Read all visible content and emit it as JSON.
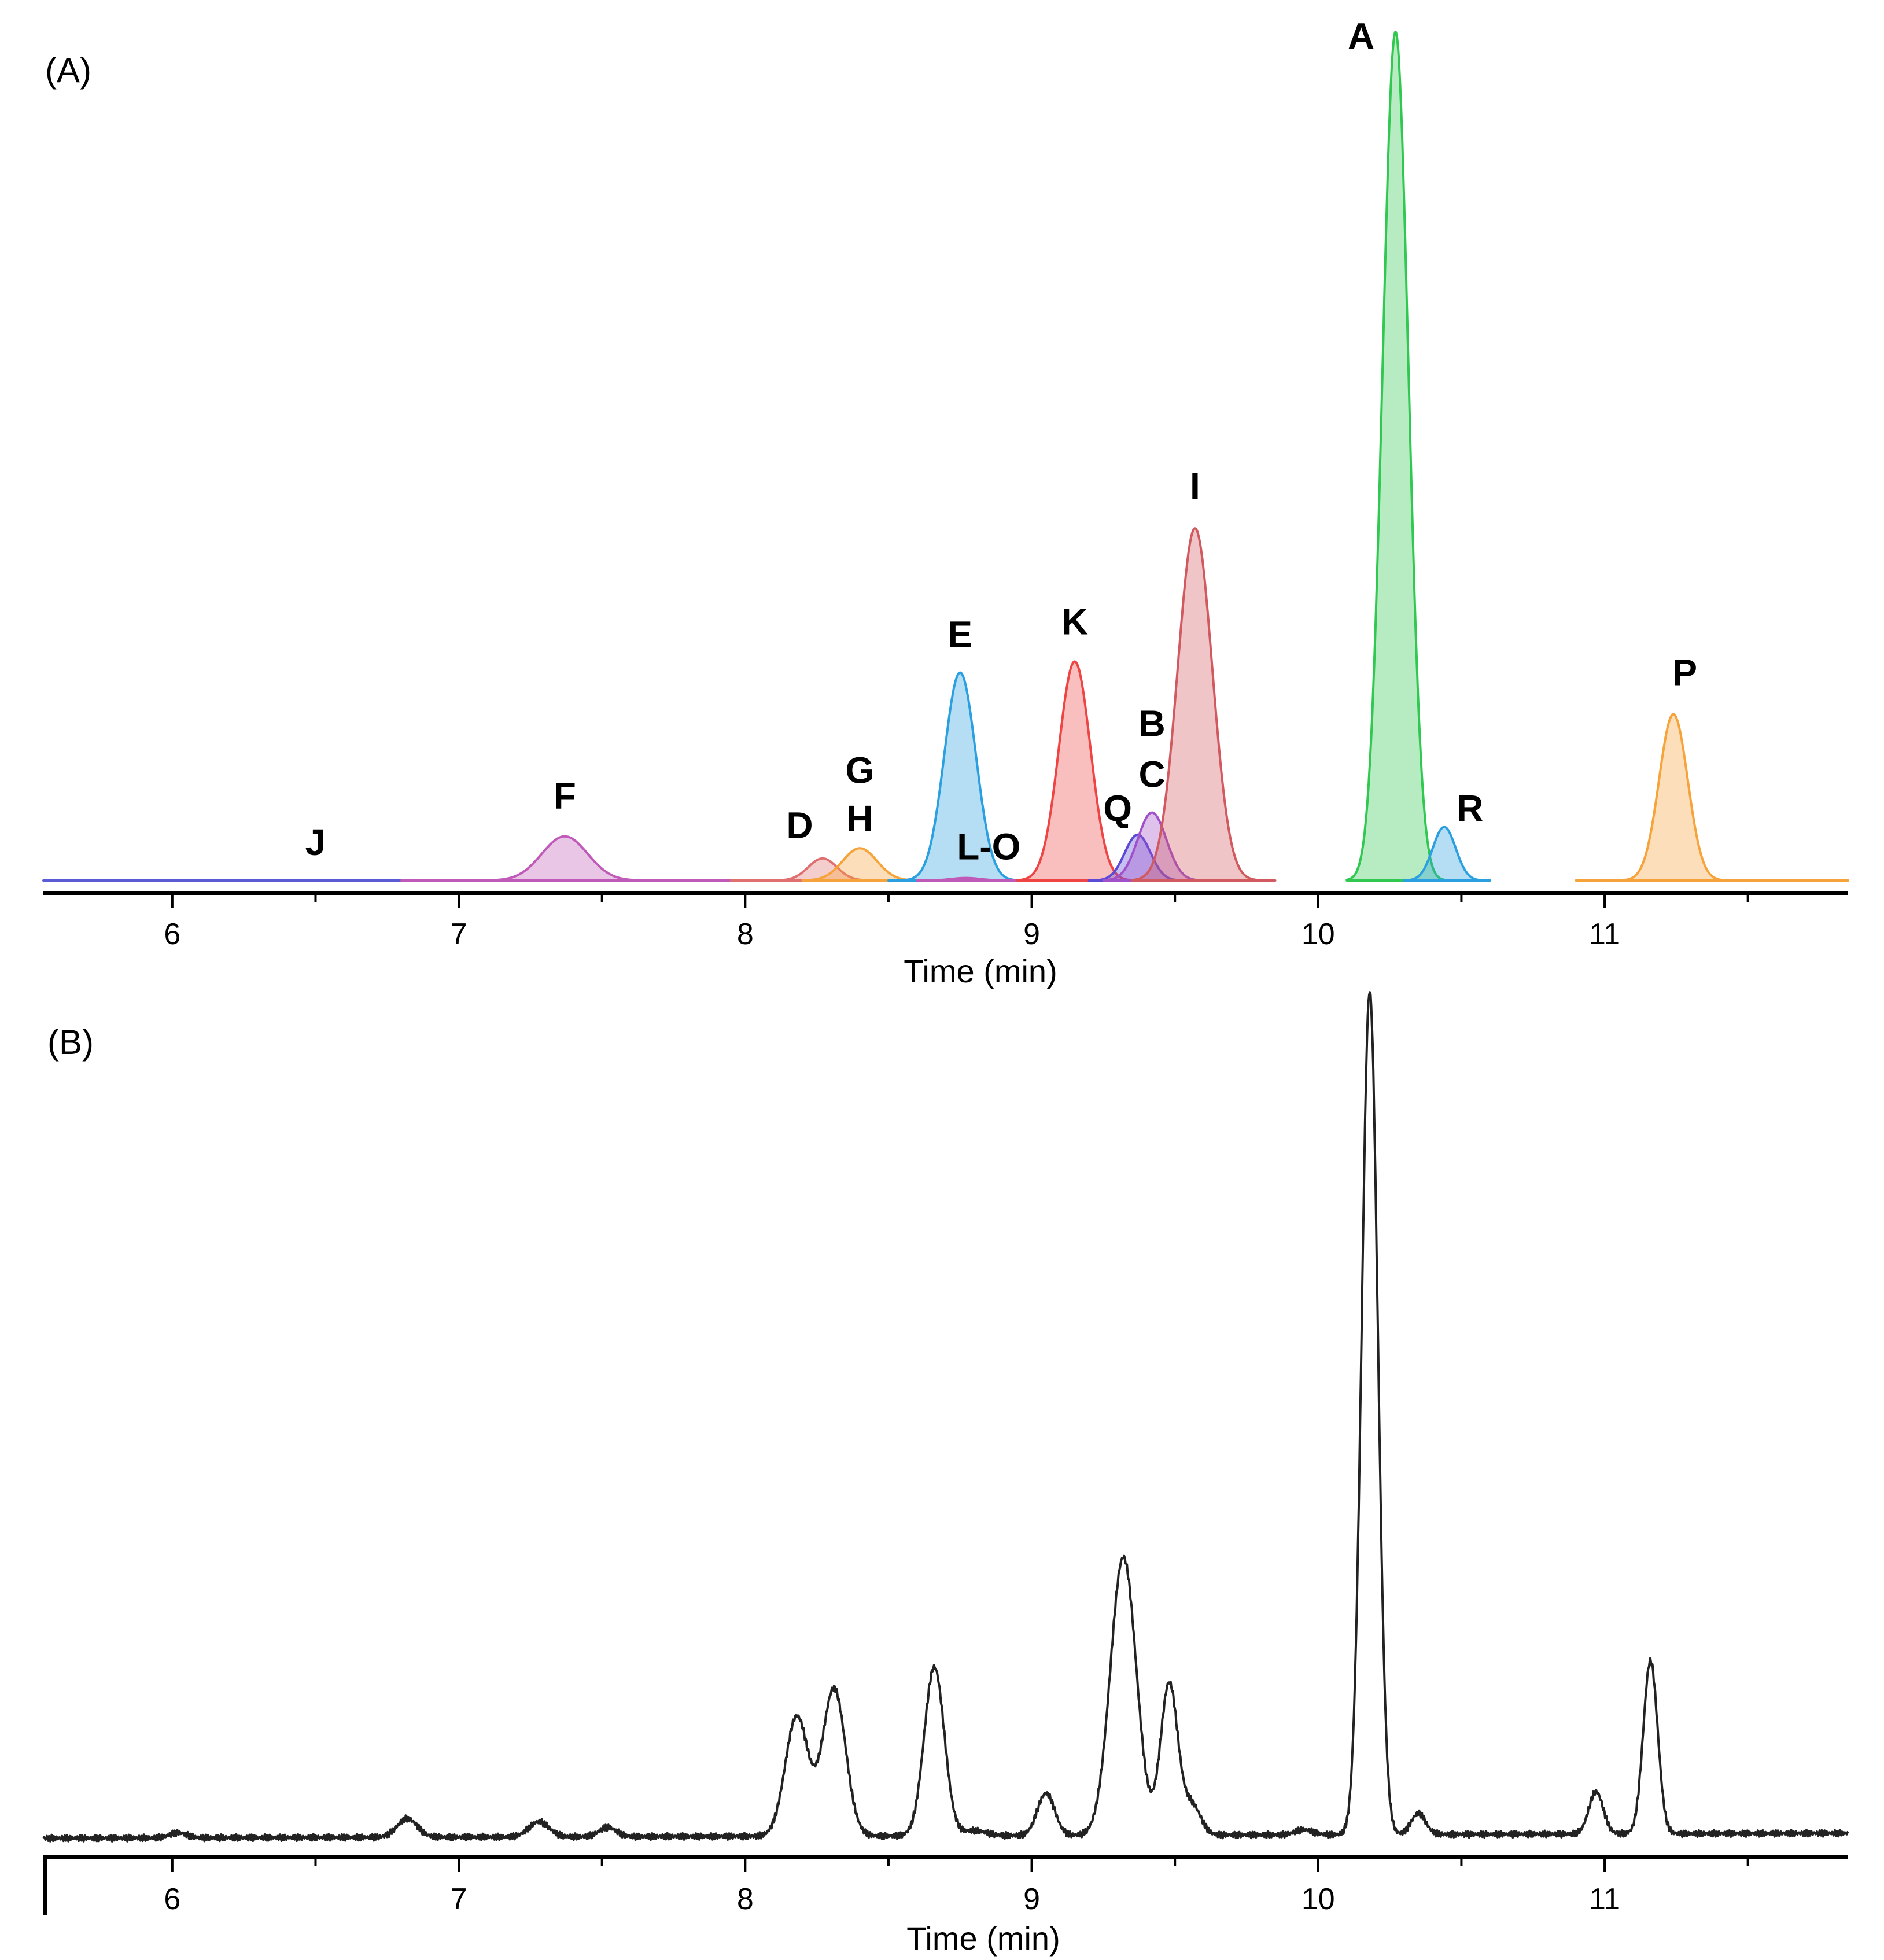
{
  "chart_data": [
    {
      "panel": "(A)",
      "type": "area",
      "xlabel": "Time (min)",
      "ylabel": "",
      "xlim": [
        5.55,
        11.85
      ],
      "ylim": [
        0,
        100
      ],
      "x_ticks": [
        6,
        7,
        8,
        9,
        10,
        11
      ],
      "x_tick_labels": [
        "6",
        "7",
        "8",
        "9",
        "10",
        "11"
      ],
      "x_minor_ticks": [
        5.5,
        6.5,
        7.5,
        8.5,
        9.5,
        10.5,
        11.5
      ],
      "grid": false,
      "series": [
        {
          "name": "J",
          "center": 6.5,
          "height": 0.0,
          "width": 0.6,
          "color": "#5b5bd6",
          "segment": [
            5.55,
            6.8
          ]
        },
        {
          "name": "F",
          "center": 7.37,
          "height": 5.2,
          "width": 0.08,
          "color": "#c05ab8",
          "segment": [
            6.8,
            7.95
          ]
        },
        {
          "name": "D",
          "center": 8.27,
          "height": 2.6,
          "width": 0.05,
          "color": "#e07070",
          "segment": [
            7.95,
            8.45
          ]
        },
        {
          "name": "G H",
          "center": 8.4,
          "height": 3.8,
          "width": 0.06,
          "color": "#f5a33a",
          "segment": [
            8.2,
            8.6
          ]
        },
        {
          "name": "E",
          "center": 8.75,
          "height": 24.5,
          "width": 0.055,
          "color": "#2aa0e0",
          "segment": [
            8.5,
            9.0
          ]
        },
        {
          "name": "L-O",
          "center": 8.77,
          "height": 0.3,
          "width": 0.05,
          "color": "#c05ab8",
          "segment": [
            8.6,
            8.95
          ]
        },
        {
          "name": "K",
          "center": 9.15,
          "height": 25.8,
          "width": 0.055,
          "color": "#ee4444",
          "segment": [
            8.95,
            9.35
          ]
        },
        {
          "name": "Q",
          "center": 9.37,
          "height": 5.4,
          "width": 0.045,
          "color": "#5b4ad6",
          "segment": [
            9.2,
            9.55
          ]
        },
        {
          "name": "B C",
          "center": 9.42,
          "height": 8.0,
          "width": 0.05,
          "color": "#a050c8",
          "segment": [
            9.25,
            9.6
          ]
        },
        {
          "name": "I",
          "center": 9.57,
          "height": 41.5,
          "width": 0.06,
          "color": "#d05a60",
          "segment": [
            9.35,
            9.85
          ]
        },
        {
          "name": "A",
          "center": 10.27,
          "height": 100.0,
          "width": 0.045,
          "color": "#30c850",
          "segment": [
            10.1,
            10.45
          ]
        },
        {
          "name": "R",
          "center": 10.44,
          "height": 6.3,
          "width": 0.04,
          "color": "#2aa0e0",
          "segment": [
            10.3,
            10.6
          ]
        },
        {
          "name": "P",
          "center": 11.24,
          "height": 19.6,
          "width": 0.05,
          "color": "#f5a33a",
          "segment": [
            10.9,
            11.85
          ]
        }
      ],
      "annotations": [
        {
          "text": "J",
          "x": 6.5,
          "y": 3.0
        },
        {
          "text": "F",
          "x": 7.37,
          "y": 8.5
        },
        {
          "text": "D",
          "x": 8.19,
          "y": 5.0
        },
        {
          "text": "G",
          "x": 8.4,
          "y": 11.5
        },
        {
          "text": "H",
          "x": 8.4,
          "y": 5.8
        },
        {
          "text": "E",
          "x": 8.75,
          "y": 27.5
        },
        {
          "text": "L-O",
          "x": 8.85,
          "y": 2.5
        },
        {
          "text": "K",
          "x": 9.15,
          "y": 29.0
        },
        {
          "text": "B",
          "x": 9.42,
          "y": 17.0
        },
        {
          "text": "C",
          "x": 9.42,
          "y": 11.0
        },
        {
          "text": "Q",
          "x": 9.3,
          "y": 7.0
        },
        {
          "text": "I",
          "x": 9.57,
          "y": 45.0
        },
        {
          "text": "A",
          "x": 10.15,
          "y": 98.0
        },
        {
          "text": "R",
          "x": 10.53,
          "y": 7.0
        },
        {
          "text": "P",
          "x": 11.28,
          "y": 23.0
        }
      ]
    },
    {
      "panel": "(B)",
      "type": "line",
      "xlabel": "Time (min)",
      "ylabel": "",
      "xlim": [
        5.55,
        11.85
      ],
      "ylim": [
        0,
        100
      ],
      "x_ticks": [
        6,
        7,
        8,
        9,
        10,
        11
      ],
      "x_tick_labels": [
        "6",
        "7",
        "8",
        "9",
        "10",
        "11"
      ],
      "x_minor_ticks": [
        5.5,
        6.5,
        7.5,
        8.5,
        9.5,
        10.5,
        11.5
      ],
      "grid": false,
      "baseline": 1.2,
      "color": "#222222",
      "peaks": [
        {
          "center": 6.02,
          "height": 0.6,
          "width": 0.03
        },
        {
          "center": 6.82,
          "height": 2.2,
          "width": 0.035
        },
        {
          "center": 7.28,
          "height": 1.8,
          "width": 0.035
        },
        {
          "center": 7.52,
          "height": 1.1,
          "width": 0.03
        },
        {
          "center": 8.18,
          "height": 14.2,
          "width": 0.04
        },
        {
          "center": 8.31,
          "height": 17.5,
          "width": 0.04
        },
        {
          "center": 8.66,
          "height": 20.0,
          "width": 0.035
        },
        {
          "center": 8.8,
          "height": 0.6,
          "width": 0.04
        },
        {
          "center": 9.05,
          "height": 5.0,
          "width": 0.03
        },
        {
          "center": 9.32,
          "height": 33.0,
          "width": 0.045
        },
        {
          "center": 9.48,
          "height": 18.0,
          "width": 0.03
        },
        {
          "center": 9.56,
          "height": 3.5,
          "width": 0.03
        },
        {
          "center": 9.95,
          "height": 0.6,
          "width": 0.03
        },
        {
          "center": 10.18,
          "height": 100.0,
          "width": 0.028
        },
        {
          "center": 10.35,
          "height": 2.5,
          "width": 0.025
        },
        {
          "center": 10.97,
          "height": 5.0,
          "width": 0.025
        },
        {
          "center": 11.16,
          "height": 20.5,
          "width": 0.025
        }
      ]
    }
  ]
}
